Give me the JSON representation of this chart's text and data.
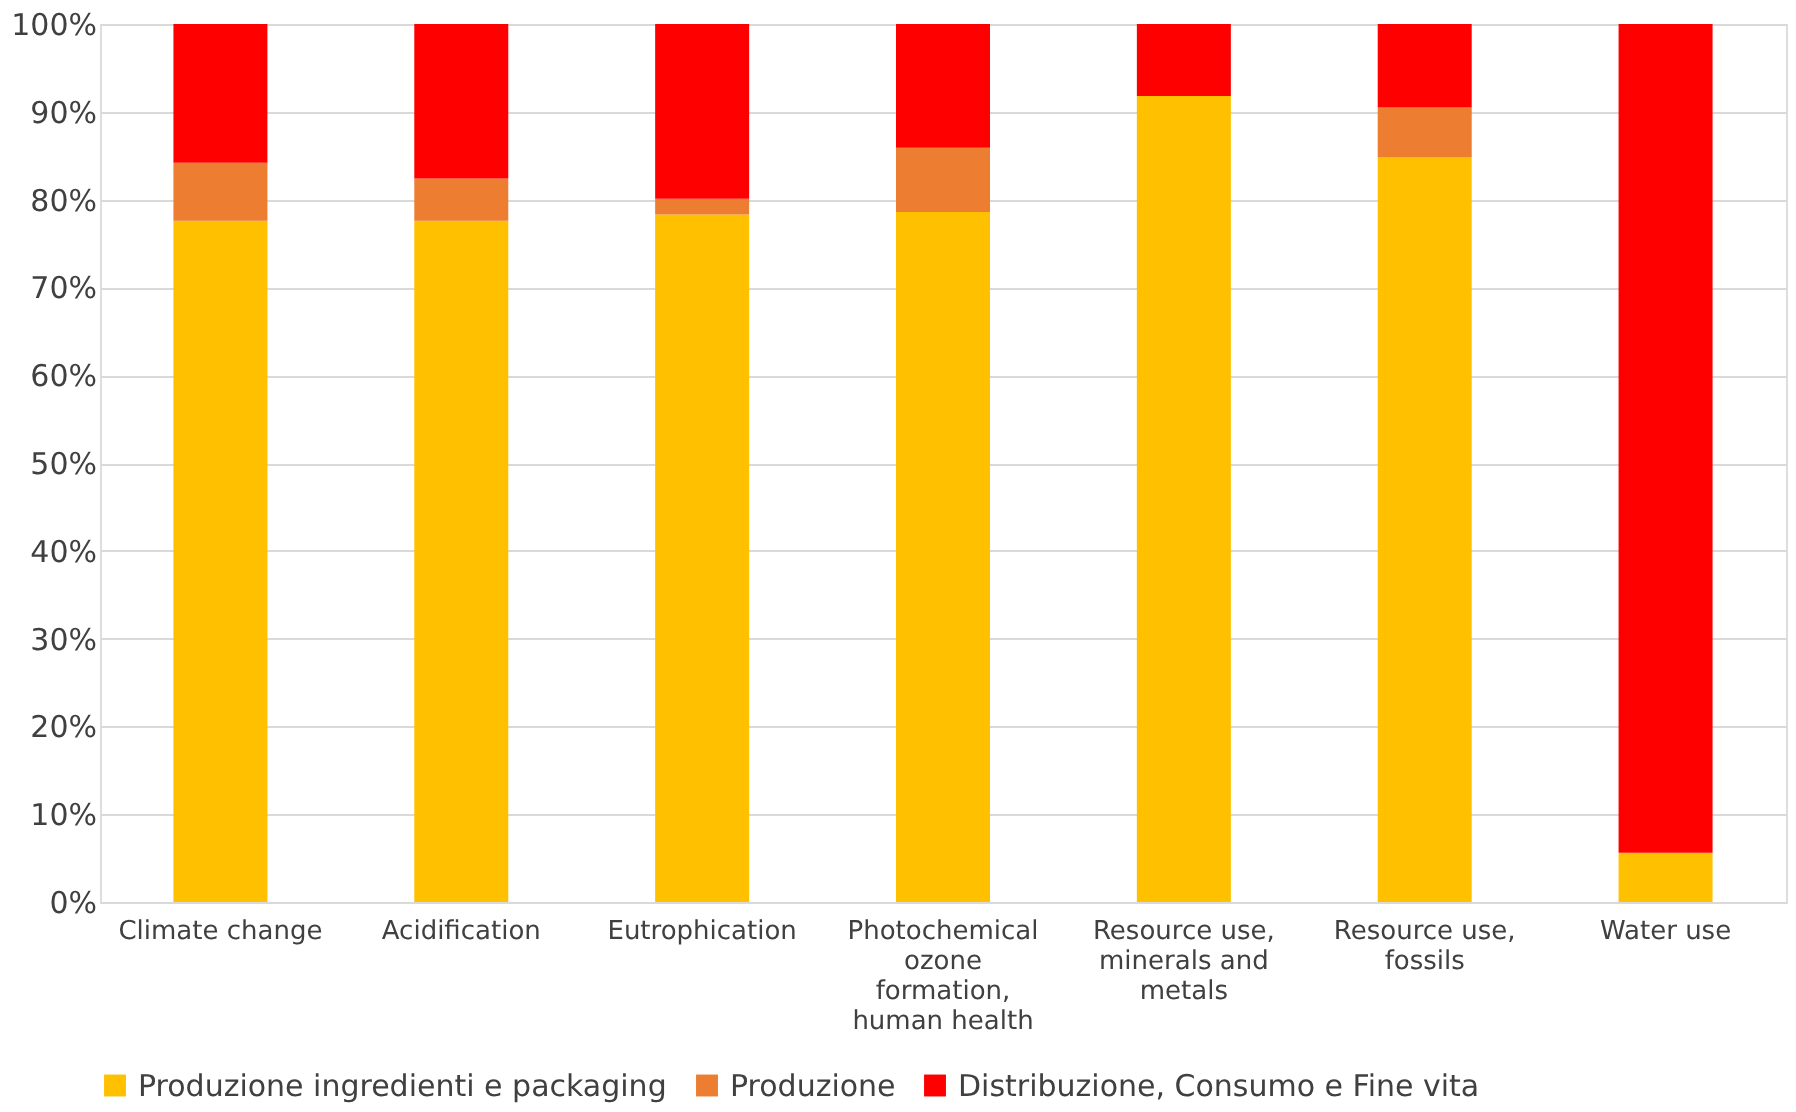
{
  "chart_data": {
    "type": "bar",
    "stacked": true,
    "categories": [
      "Climate change",
      "Acidification",
      "Eutrophication",
      "Photochemical ozone formation, human health",
      "Resource use, minerals and metals",
      "Resource use, fossils",
      "Water use"
    ],
    "series": [
      {
        "name": "Produzione ingredienti e packaging",
        "color": "#ffc000",
        "values": [
          77.6,
          77.6,
          78.3,
          78.6,
          91.8,
          84.8,
          5.6
        ]
      },
      {
        "name": "Produzione",
        "color": "#ed7d31",
        "values": [
          6.6,
          4.8,
          1.8,
          7.3,
          0,
          5.7,
          0
        ]
      },
      {
        "name": "Distribuzione, Consumo e Fine vita",
        "color": "#ff0000",
        "values": [
          15.8,
          17.6,
          19.9,
          14.1,
          8.2,
          9.5,
          94.4
        ]
      }
    ],
    "ylim": [
      0,
      100
    ],
    "yticks": [
      {
        "value": 0,
        "label": "0%"
      },
      {
        "value": 10,
        "label": "10%"
      },
      {
        "value": 20,
        "label": "20%"
      },
      {
        "value": 30,
        "label": "30%"
      },
      {
        "value": 40,
        "label": "40%"
      },
      {
        "value": 50,
        "label": "50%"
      },
      {
        "value": 60,
        "label": "60%"
      },
      {
        "value": 70,
        "label": "70%"
      },
      {
        "value": 80,
        "label": "80%"
      },
      {
        "value": 90,
        "label": "90%"
      },
      {
        "value": 100,
        "label": "100%"
      }
    ],
    "grid": "y",
    "legend": "bottom"
  }
}
